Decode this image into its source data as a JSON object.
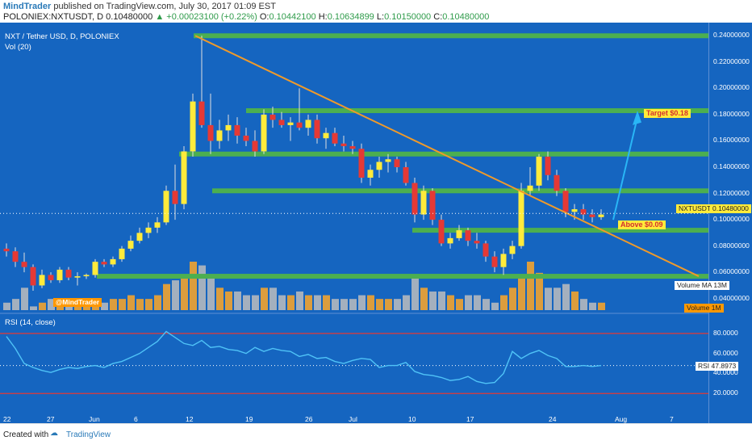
{
  "header": {
    "author": "MindTrader",
    "published_text": "published on TradingView.com, July 30, 2017 01:09 EST",
    "symbol_line": "POLONIEX:NXTUSDT, D",
    "last": "0.10480000",
    "change": "▲ +0.00023100 (+0.22%)",
    "o_label": "O:",
    "o_val": "0.10442100",
    "h_label": "H:",
    "h_val": "0.10634899",
    "l_label": "L:",
    "l_val": "0.10150000",
    "c_label": "C:",
    "c_val": "0.10480000"
  },
  "chart": {
    "title": "NXT / Tether USD, D, POLONIEX",
    "vol_legend": "Vol (20)",
    "rsi_legend": "RSI (14, close)",
    "watermark": "@MindTrader",
    "price_axis_ticks": [
      "0.24000000",
      "0.22000000",
      "0.20000000",
      "0.18000000",
      "0.16000000",
      "0.14000000",
      "0.12000000",
      "0.10000000",
      "0.08000000",
      "0.06000000",
      "0.04000000"
    ],
    "rsi_axis_ticks": [
      "80.0000",
      "60.0000",
      "40.0000",
      "20.0000"
    ],
    "x_ticks": [
      "22",
      "27",
      "Jun",
      "6",
      "12",
      "19",
      "26",
      "Jul",
      "10",
      "17",
      "24",
      "Aug",
      "7"
    ],
    "annotations": {
      "target": "Target $0.18",
      "above": "Above $0.09"
    },
    "labels": {
      "price_tag_name": "NXTUSDT",
      "price_tag_value": "0.10480000",
      "volume_ma": "Volume MA",
      "volume_ma_val": "13M",
      "volume": "Volume",
      "volume_val": "1M",
      "rsi_name": "RSI",
      "rsi_val": "47.8973"
    },
    "colors": {
      "background": "#1565c0",
      "bull": "#ffeb3b",
      "bear": "#e53935",
      "support_line": "#4caf50",
      "trendline": "#ef9a2a",
      "rsi_line": "#4fc3f7",
      "rsi_band": "#e53935",
      "arrow": "#29b6f6"
    }
  },
  "footer": {
    "created_with": "Created with",
    "brand": "TradingView"
  },
  "chart_data": {
    "type": "candlestick",
    "title": "NXT / Tether USD, D, POLONIEX",
    "ylim": [
      0.03,
      0.25
    ],
    "support_levels": [
      0.24,
      0.183,
      0.15,
      0.122,
      0.092,
      0.057
    ],
    "candles": [
      [
        0.078,
        0.082,
        0.072,
        0.076
      ],
      [
        0.076,
        0.079,
        0.064,
        0.068
      ],
      [
        0.068,
        0.075,
        0.06,
        0.064
      ],
      [
        0.064,
        0.066,
        0.046,
        0.05
      ],
      [
        0.05,
        0.062,
        0.048,
        0.058
      ],
      [
        0.058,
        0.06,
        0.052,
        0.054
      ],
      [
        0.054,
        0.064,
        0.052,
        0.062
      ],
      [
        0.062,
        0.064,
        0.054,
        0.056
      ],
      [
        0.056,
        0.06,
        0.05,
        0.057
      ],
      [
        0.057,
        0.059,
        0.055,
        0.058
      ],
      [
        0.058,
        0.07,
        0.056,
        0.068
      ],
      [
        0.068,
        0.07,
        0.064,
        0.066
      ],
      [
        0.066,
        0.072,
        0.064,
        0.07
      ],
      [
        0.07,
        0.08,
        0.068,
        0.078
      ],
      [
        0.078,
        0.088,
        0.076,
        0.084
      ],
      [
        0.084,
        0.094,
        0.082,
        0.09
      ],
      [
        0.09,
        0.098,
        0.086,
        0.094
      ],
      [
        0.094,
        0.102,
        0.09,
        0.098
      ],
      [
        0.098,
        0.126,
        0.096,
        0.122
      ],
      [
        0.122,
        0.142,
        0.1,
        0.112
      ],
      [
        0.112,
        0.156,
        0.108,
        0.152
      ],
      [
        0.152,
        0.196,
        0.148,
        0.19
      ],
      [
        0.19,
        0.24,
        0.17,
        0.172
      ],
      [
        0.172,
        0.196,
        0.15,
        0.16
      ],
      [
        0.16,
        0.176,
        0.154,
        0.168
      ],
      [
        0.168,
        0.18,
        0.16,
        0.172
      ],
      [
        0.172,
        0.178,
        0.158,
        0.164
      ],
      [
        0.164,
        0.17,
        0.156,
        0.16
      ],
      [
        0.16,
        0.168,
        0.148,
        0.152
      ],
      [
        0.152,
        0.184,
        0.15,
        0.18
      ],
      [
        0.18,
        0.186,
        0.17,
        0.176
      ],
      [
        0.176,
        0.182,
        0.17,
        0.172
      ],
      [
        0.172,
        0.178,
        0.16,
        0.174
      ],
      [
        0.174,
        0.2,
        0.168,
        0.17
      ],
      [
        0.17,
        0.18,
        0.164,
        0.176
      ],
      [
        0.176,
        0.18,
        0.158,
        0.162
      ],
      [
        0.162,
        0.17,
        0.154,
        0.166
      ],
      [
        0.166,
        0.17,
        0.156,
        0.158
      ],
      [
        0.158,
        0.164,
        0.152,
        0.156
      ],
      [
        0.156,
        0.16,
        0.15,
        0.154
      ],
      [
        0.154,
        0.158,
        0.128,
        0.132
      ],
      [
        0.132,
        0.142,
        0.126,
        0.138
      ],
      [
        0.138,
        0.148,
        0.132,
        0.144
      ],
      [
        0.144,
        0.15,
        0.136,
        0.146
      ],
      [
        0.146,
        0.148,
        0.136,
        0.14
      ],
      [
        0.14,
        0.144,
        0.126,
        0.128
      ],
      [
        0.128,
        0.132,
        0.098,
        0.104
      ],
      [
        0.104,
        0.126,
        0.1,
        0.122
      ],
      [
        0.122,
        0.124,
        0.096,
        0.1
      ],
      [
        0.1,
        0.104,
        0.08,
        0.082
      ],
      [
        0.082,
        0.09,
        0.078,
        0.086
      ],
      [
        0.086,
        0.096,
        0.084,
        0.092
      ],
      [
        0.092,
        0.094,
        0.08,
        0.084
      ],
      [
        0.084,
        0.09,
        0.078,
        0.082
      ],
      [
        0.082,
        0.084,
        0.068,
        0.072
      ],
      [
        0.072,
        0.076,
        0.06,
        0.064
      ],
      [
        0.064,
        0.078,
        0.058,
        0.074
      ],
      [
        0.074,
        0.084,
        0.07,
        0.08
      ],
      [
        0.08,
        0.128,
        0.078,
        0.122
      ],
      [
        0.122,
        0.14,
        0.118,
        0.126
      ],
      [
        0.126,
        0.15,
        0.122,
        0.148
      ],
      [
        0.148,
        0.152,
        0.13,
        0.134
      ],
      [
        0.134,
        0.138,
        0.118,
        0.122
      ],
      [
        0.122,
        0.124,
        0.102,
        0.106
      ],
      [
        0.106,
        0.112,
        0.1,
        0.108
      ],
      [
        0.108,
        0.112,
        0.1,
        0.104
      ],
      [
        0.104,
        0.108,
        0.098,
        0.102
      ],
      [
        0.102,
        0.108,
        0.1,
        0.104
      ]
    ],
    "volume": [
      2,
      3,
      6,
      1,
      2,
      3,
      3,
      2,
      2,
      2,
      2,
      2,
      3,
      3,
      4,
      3,
      3,
      4,
      7,
      8,
      9,
      13,
      12,
      9,
      6,
      5,
      5,
      4,
      4,
      6,
      6,
      4,
      4,
      5,
      4,
      4,
      4,
      3,
      3,
      3,
      4,
      4,
      3,
      3,
      3,
      4,
      9,
      6,
      5,
      5,
      4,
      3,
      4,
      4,
      3,
      2,
      4,
      6,
      9,
      13,
      10,
      6,
      6,
      7,
      5,
      3,
      2,
      2
    ],
    "rsi": [
      77,
      65,
      50,
      46,
      43,
      41,
      44,
      46,
      45,
      47,
      48,
      46,
      50,
      52,
      56,
      60,
      66,
      72,
      82,
      76,
      70,
      68,
      73,
      66,
      67,
      64,
      63,
      60,
      66,
      62,
      65,
      63,
      62,
      57,
      59,
      55,
      56,
      52,
      50,
      53,
      55,
      54,
      46,
      48,
      48,
      51,
      42,
      39,
      38,
      36,
      33,
      34,
      37,
      32,
      30,
      31,
      40,
      62,
      55,
      60,
      63,
      58,
      55,
      47,
      47,
      48,
      47,
      48
    ],
    "rsi_levels": [
      80,
      20
    ],
    "current_rsi": 47.8973
  }
}
